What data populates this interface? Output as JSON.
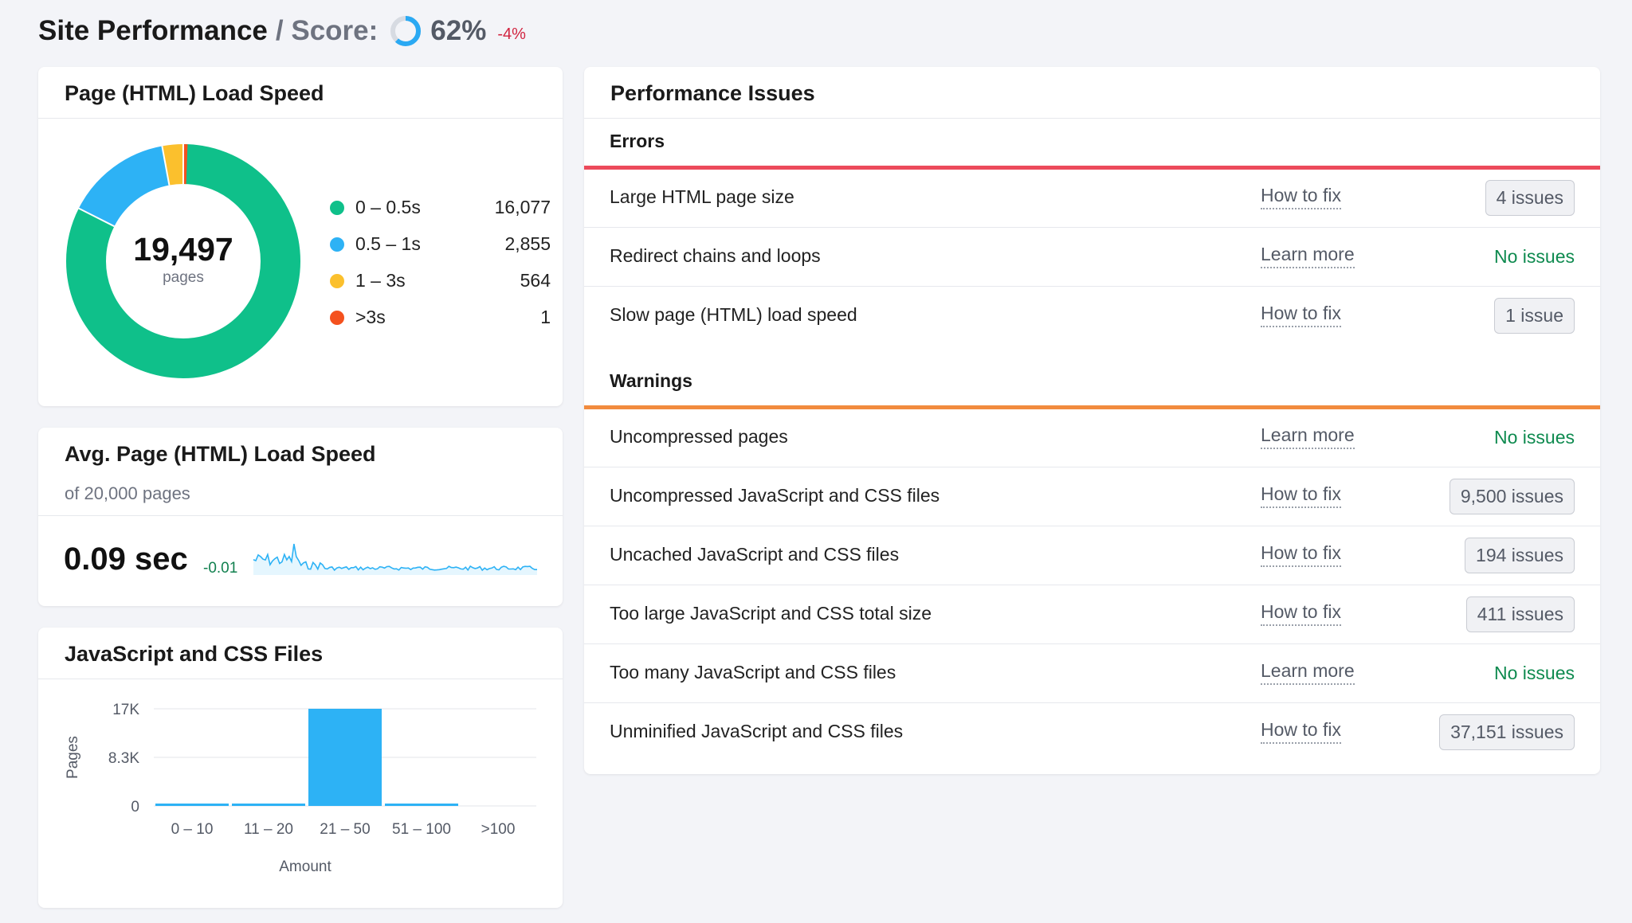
{
  "header": {
    "title": "Site Performance",
    "score_label": "/ Score:",
    "score_value": 62,
    "score_text": "62%",
    "score_delta": "-4%",
    "ring_color": "#2aa9f3",
    "ring_track_color": "#d7dbe2"
  },
  "load_speed": {
    "title": "Page (HTML) Load Speed",
    "total": "19,497",
    "total_label": "pages",
    "legend": [
      {
        "label": "0 – 0.5s",
        "count": "16,077",
        "value": 16077,
        "color": "#0fc08a"
      },
      {
        "label": "0.5 – 1s",
        "count": "2,855",
        "value": 2855,
        "color": "#2db2f5"
      },
      {
        "label": "1 – 3s",
        "count": "564",
        "value": 564,
        "color": "#fbc02d"
      },
      {
        "label": ">3s",
        "count": "1",
        "value": 1,
        "color": "#f4511e"
      }
    ]
  },
  "avg_speed": {
    "title": "Avg. Page (HTML) Load Speed",
    "subtitle": "of 20,000 pages",
    "value": "0.09 sec",
    "delta": "-0.01",
    "sparkline_color": "#2db2f5"
  },
  "js_css": {
    "title": "JavaScript and CSS Files",
    "chart_data": {
      "type": "bar",
      "categories": [
        "0 – 10",
        "11 – 20",
        "21 – 50",
        "51 – 100",
        ">100"
      ],
      "values": [
        300,
        300,
        17000,
        300,
        0
      ],
      "yticks": [
        "17K",
        "8.3K",
        "0"
      ],
      "ylim": [
        0,
        17000
      ],
      "xlabel": "Amount",
      "ylabel": "Pages",
      "grid": true,
      "color": "#2db2f5"
    }
  },
  "issues": {
    "title": "Performance Issues",
    "errors": {
      "title": "Errors",
      "color": "#ec4a5b",
      "rows": [
        {
          "name": "Large HTML page size",
          "link": "How to fix",
          "status": "4 issues",
          "ok": false
        },
        {
          "name": "Redirect chains and loops",
          "link": "Learn more",
          "status": "No issues",
          "ok": true
        },
        {
          "name": "Slow page (HTML) load speed",
          "link": "How to fix",
          "status": "1 issue",
          "ok": false
        }
      ]
    },
    "warnings": {
      "title": "Warnings",
      "color": "#f28b3e",
      "rows": [
        {
          "name": "Uncompressed pages",
          "link": "Learn more",
          "status": "No issues",
          "ok": true
        },
        {
          "name": "Uncompressed JavaScript and CSS files",
          "link": "How to fix",
          "status": "9,500 issues",
          "ok": false
        },
        {
          "name": "Uncached JavaScript and CSS files",
          "link": "How to fix",
          "status": "194 issues",
          "ok": false
        },
        {
          "name": "Too large JavaScript and CSS total size",
          "link": "How to fix",
          "status": "411 issues",
          "ok": false
        },
        {
          "name": "Too many JavaScript and CSS files",
          "link": "Learn more",
          "status": "No issues",
          "ok": true
        },
        {
          "name": "Unminified JavaScript and CSS files",
          "link": "How to fix",
          "status": "37,151 issues",
          "ok": false
        }
      ]
    }
  }
}
